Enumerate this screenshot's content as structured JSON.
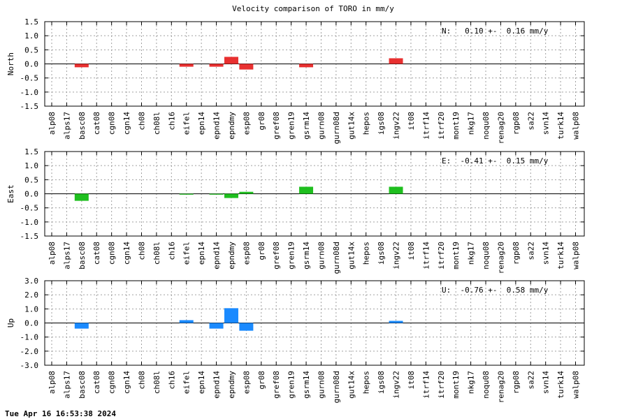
{
  "chart_data": {
    "type": "bar",
    "title": "Velocity comparison of TORO in mm/y",
    "categories": [
      "alp08",
      "alps17",
      "basc08",
      "cat08",
      "cgn08",
      "cgn14",
      "ch08",
      "ch08l",
      "ch16",
      "eifel",
      "epn14",
      "epnd14",
      "epndmy",
      "esp08",
      "gr08",
      "gref08",
      "gren19",
      "gsrm14",
      "gurn08",
      "gurn08d",
      "gut14x",
      "hepos",
      "igs08",
      "ingv22",
      "it08",
      "itrf14",
      "itrf20",
      "mont19",
      "nkg17",
      "noqu08",
      "renag20",
      "rgp08",
      "sa22",
      "svn14",
      "turk14",
      "walp08"
    ],
    "panels": [
      {
        "ylabel": "North",
        "color": "#e83030",
        "ylim": [
          -1.5,
          1.5
        ],
        "yticks": [
          "1.5",
          "1.0",
          "0.5",
          "0.0",
          "-0.5",
          "-1.0",
          "-1.5"
        ],
        "annotation": "N:   0.10 +-  0.16 mm/y",
        "values": [
          0,
          0,
          -0.12,
          0,
          0,
          0,
          0,
          0,
          0,
          -0.1,
          0,
          -0.1,
          0.25,
          -0.2,
          0,
          0,
          0,
          -0.12,
          0,
          0,
          0,
          0,
          0,
          0.2,
          0,
          0,
          0,
          0,
          0,
          0,
          0,
          0,
          0,
          0,
          0,
          0
        ]
      },
      {
        "ylabel": "East",
        "color": "#1fbf1f",
        "ylim": [
          -1.5,
          1.5
        ],
        "yticks": [
          "1.5",
          "1.0",
          "0.5",
          "0.0",
          "-0.5",
          "-1.0",
          "-1.5"
        ],
        "annotation": "E:  -0.41 +-  0.15 mm/y",
        "values": [
          0,
          0,
          -0.25,
          0,
          0,
          0,
          0,
          0,
          0,
          -0.03,
          0,
          -0.03,
          -0.15,
          0.07,
          0,
          0,
          0,
          0.25,
          0,
          0,
          0,
          0,
          0,
          0.25,
          0,
          0,
          0,
          0,
          0,
          0,
          0,
          0,
          0,
          0,
          0,
          0
        ]
      },
      {
        "ylabel": "Up",
        "color": "#1a8aff",
        "ylim": [
          -3.0,
          3.0
        ],
        "yticks": [
          "3.0",
          "2.0",
          "1.0",
          "0.0",
          "-1.0",
          "-2.0",
          "-3.0"
        ],
        "annotation": "U:  -0.76 +-  0.58 mm/y",
        "values": [
          0,
          0,
          -0.4,
          0,
          0,
          0,
          0,
          0,
          0,
          0.2,
          0,
          -0.4,
          1.05,
          -0.55,
          0,
          0,
          0,
          0,
          0,
          0,
          0,
          0,
          0,
          0.15,
          0,
          0,
          0,
          0,
          0,
          0,
          0,
          0,
          0,
          0,
          0,
          0
        ]
      }
    ],
    "grid": true
  },
  "timestamp": "Tue Apr 16 16:53:38 2024"
}
